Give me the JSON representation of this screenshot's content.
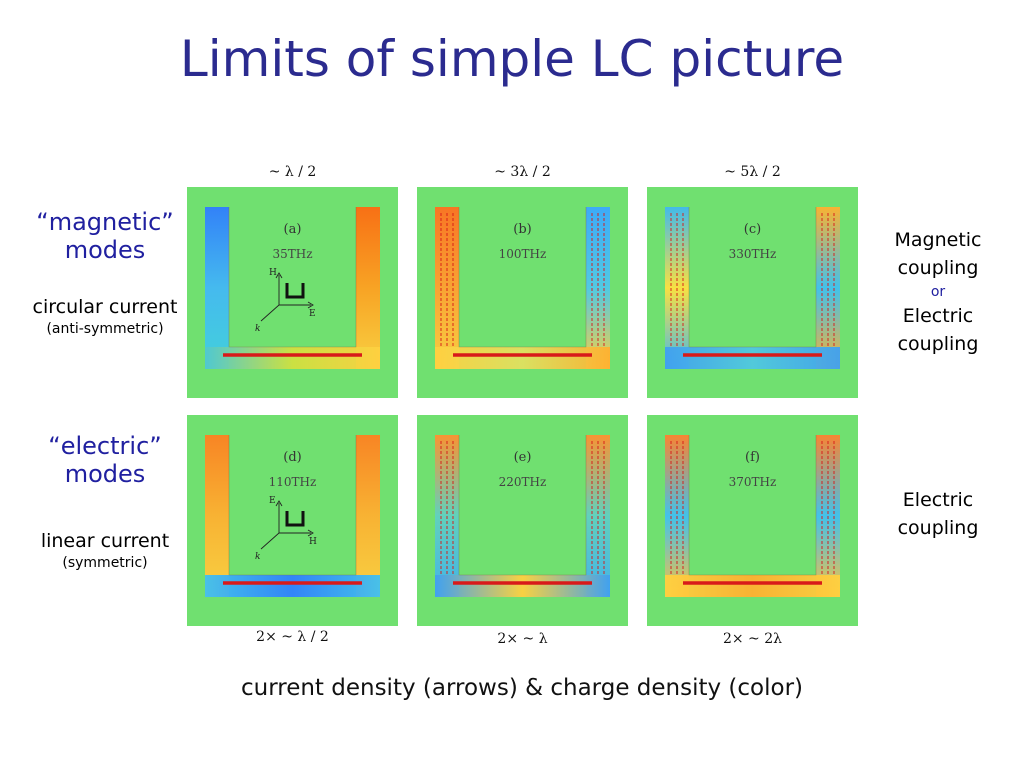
{
  "title": "Limits of simple LC picture",
  "top_wavelengths": [
    "~ λ / 2",
    "~ 3λ / 2",
    "~ 5λ / 2"
  ],
  "bottom_wavelengths": [
    "2× ~ λ / 2",
    "2× ~ λ",
    "2× ~ 2λ"
  ],
  "left": {
    "magnetic_modes": "“magnetic” modes",
    "magnetic_current": "circular current",
    "magnetic_symmetry": "(anti-symmetric)",
    "electric_modes": "“electric” modes",
    "electric_current": "linear current",
    "electric_symmetry": "(symmetric)"
  },
  "right": {
    "top_line1": "Magnetic coupling",
    "top_or": "or",
    "top_line2": "Electric coupling",
    "bottom": "Electric coupling"
  },
  "panels": [
    {
      "label": "(a)",
      "freq": "35THz",
      "axes": {
        "vertical": "H",
        "horizontal": "E",
        "diagonal": "k"
      }
    },
    {
      "label": "(b)",
      "freq": "100THz"
    },
    {
      "label": "(c)",
      "freq": "330THz"
    },
    {
      "label": "(d)",
      "freq": "110THz",
      "axes": {
        "vertical": "E",
        "horizontal": "H",
        "diagonal": "k"
      }
    },
    {
      "label": "(e)",
      "freq": "220THz"
    },
    {
      "label": "(f)",
      "freq": "370THz"
    }
  ],
  "caption": "current density (arrows) & charge density (color)",
  "colors": {
    "title": "#2b2b8f",
    "background_field": "#70e070",
    "positive_charge": "#ff7a1a",
    "negative_charge": "#3aa0ff",
    "current": "#d81a1a"
  }
}
